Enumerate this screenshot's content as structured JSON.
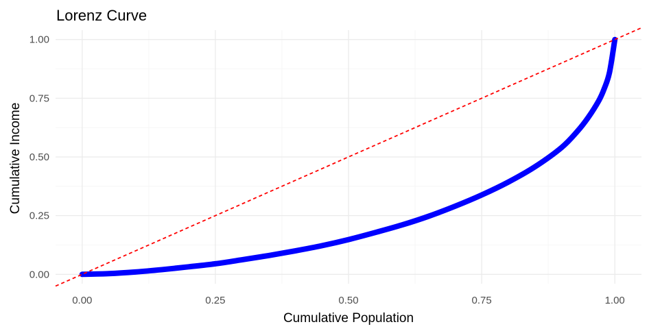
{
  "chart_data": {
    "type": "line",
    "title": "Lorenz Curve",
    "xlabel": "Cumulative Population",
    "ylabel": "Cumulative Income",
    "xlim": [
      -0.05,
      1.05
    ],
    "ylim": [
      -0.04,
      1.04
    ],
    "x_ticks": [
      0,
      0.25,
      0.5,
      0.75,
      1
    ],
    "x_tick_labels": [
      "0.00",
      "0.25",
      "0.50",
      "0.75",
      "1.00"
    ],
    "y_ticks": [
      0,
      0.25,
      0.5,
      0.75,
      1
    ],
    "y_tick_labels": [
      "0.00",
      "0.25",
      "0.50",
      "0.75",
      "1.00"
    ],
    "grid": true,
    "series": [
      {
        "color": "#0000ff",
        "style": "thick solid (dense points)",
        "x": [
          0,
          0.05,
          0.1,
          0.15,
          0.2,
          0.25,
          0.3,
          0.35,
          0.4,
          0.45,
          0.5,
          0.55,
          0.6,
          0.65,
          0.7,
          0.75,
          0.8,
          0.85,
          0.9,
          0.93,
          0.95,
          0.97,
          0.98,
          0.99,
          1
        ],
        "y": [
          0,
          0.003,
          0.01,
          0.02,
          0.032,
          0.045,
          0.062,
          0.08,
          0.1,
          0.122,
          0.148,
          0.178,
          0.21,
          0.247,
          0.29,
          0.338,
          0.393,
          0.458,
          0.54,
          0.61,
          0.668,
          0.74,
          0.79,
          0.86,
          1
        ]
      },
      {
        "color": "#ff0000",
        "style": "dashed",
        "x": [
          -0.05,
          1.05
        ],
        "y": [
          -0.05,
          1.05
        ]
      }
    ]
  }
}
